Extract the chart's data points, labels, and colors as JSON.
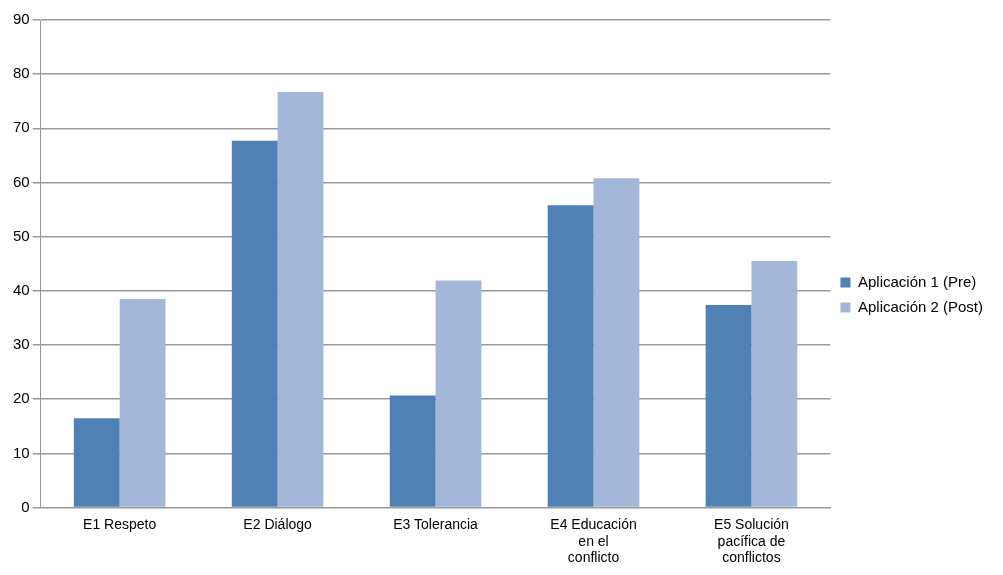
{
  "chart_data": {
    "type": "bar",
    "categories": [
      "E1 Respeto",
      "E2 Diálogo",
      "E3 Tolerancia",
      "E4 Educación en el conflicto",
      "E5 Solución pacífica de conflictos"
    ],
    "series": [
      {
        "name": "Aplicación 1 (Pre)",
        "color": "#4f81b4",
        "values": [
          16.5,
          67.7,
          20.7,
          55.8,
          37.4
        ]
      },
      {
        "name": "Aplicación 2 (Post)",
        "color": "#a3b7d9",
        "values": [
          38.5,
          76.7,
          41.9,
          60.8,
          45.5
        ]
      }
    ],
    "ylim": [
      0,
      90
    ],
    "yticks": [
      0,
      10,
      20,
      30,
      40,
      50,
      60,
      70,
      80,
      90
    ],
    "grid": "y",
    "legend": "right"
  }
}
